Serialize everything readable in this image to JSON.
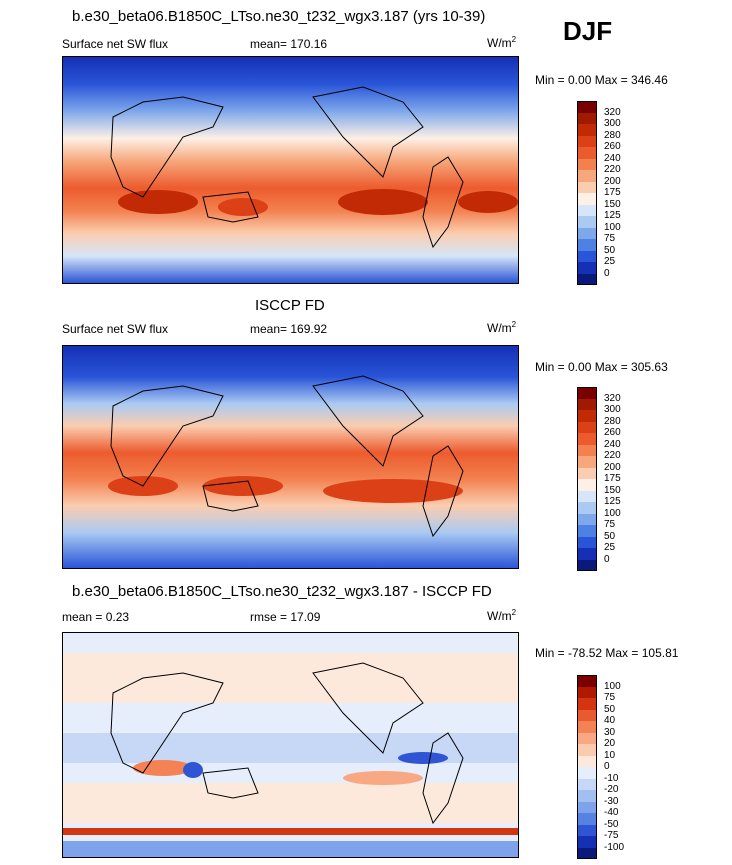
{
  "season": "DJF",
  "panels": [
    {
      "title": "b.e30_beta06.B1850C_LTso.ne30_t232_wgx3.187 (yrs 10-39)",
      "left_label": "Surface net SW flux",
      "center_label": "mean= 170.16",
      "units_base": "W/m",
      "units_exp": "2",
      "minmax": "Min =   0.00 Max = 346.46",
      "colorbar_labels": [
        "320",
        "300",
        "280",
        "260",
        "240",
        "220",
        "200",
        "175",
        "150",
        "125",
        "100",
        "75",
        "50",
        "25",
        "0"
      ],
      "colorbar_colors": [
        "#7a0000",
        "#a01a00",
        "#c22a05",
        "#dc4016",
        "#ec5b2e",
        "#f3814f",
        "#f7a77c",
        "#fbcdb0",
        "#fdf0e6",
        "#d6e6f8",
        "#aacaf2",
        "#7ea8eb",
        "#4f80e4",
        "#2a55d8",
        "#1530b5",
        "#0a1a7a"
      ]
    },
    {
      "title": "ISCCP FD",
      "left_label": "Surface net SW flux",
      "center_label": "mean= 169.92",
      "units_base": "W/m",
      "units_exp": "2",
      "minmax": "Min =   0.00 Max = 305.63",
      "colorbar_labels": [
        "320",
        "300",
        "280",
        "260",
        "240",
        "220",
        "200",
        "175",
        "150",
        "125",
        "100",
        "75",
        "50",
        "25",
        "0"
      ],
      "colorbar_colors": [
        "#7a0000",
        "#a01a00",
        "#c22a05",
        "#dc4016",
        "#ec5b2e",
        "#f3814f",
        "#f7a77c",
        "#fbcdb0",
        "#fdf0e6",
        "#d6e6f8",
        "#aacaf2",
        "#7ea8eb",
        "#4f80e4",
        "#2a55d8",
        "#1530b5",
        "#0a1a7a"
      ]
    },
    {
      "title": "b.e30_beta06.B1850C_LTso.ne30_t232_wgx3.187 - ISCCP FD",
      "left_label": "mean =   0.23",
      "center_label": "rmse =  17.09",
      "units_base": "W/m",
      "units_exp": "2",
      "minmax": "Min = -78.52 Max = 105.81",
      "colorbar_labels": [
        "100",
        "75",
        "50",
        "40",
        "30",
        "20",
        "10",
        "0",
        "-10",
        "-20",
        "-30",
        "-40",
        "-50",
        "-75",
        "-100"
      ],
      "colorbar_colors": [
        "#7a0000",
        "#b01800",
        "#d23510",
        "#e85a30",
        "#f48255",
        "#f8a983",
        "#fbcbb0",
        "#fde9dc",
        "#e6eefc",
        "#c6d8f6",
        "#a2bff0",
        "#7ea3ea",
        "#5882e2",
        "#2f55d5",
        "#1530b5",
        "#0a1a7a"
      ]
    }
  ]
}
